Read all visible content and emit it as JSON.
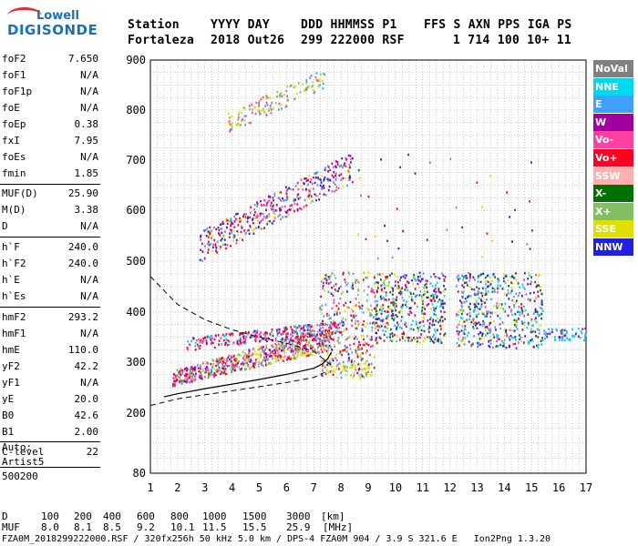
{
  "logo": {
    "line1": "Lowell",
    "line2": "DIGISONDE"
  },
  "header": {
    "labels": [
      "Station",
      "YYYY DAY",
      "DDD HHMMSS P1",
      "FFS S AXN PPS IGA PS"
    ],
    "values": [
      "Fortaleza",
      "2018 Out26",
      "299 222000 RSF",
      "1 714 100 10+ 11"
    ]
  },
  "params": [
    {
      "label": "foF2",
      "value": "7.650"
    },
    {
      "label": "foF1",
      "value": "N/A"
    },
    {
      "label": "foF1p",
      "value": "N/A"
    },
    {
      "label": "foE",
      "value": "N/A"
    },
    {
      "label": "foEp",
      "value": "0.38"
    },
    {
      "label": "fxI",
      "value": "7.95"
    },
    {
      "label": "foEs",
      "value": "N/A"
    },
    {
      "label": "fmin",
      "value": "1.85"
    },
    {
      "label": "MUF(D)",
      "value": "25.90"
    },
    {
      "label": "M(D)",
      "value": "3.38"
    },
    {
      "label": "D",
      "value": "N/A"
    },
    {
      "label": "h`F",
      "value": "240.0"
    },
    {
      "label": "h`F2",
      "value": "240.0"
    },
    {
      "label": "h`E",
      "value": "N/A"
    },
    {
      "label": "h`Es",
      "value": "N/A"
    },
    {
      "label": "hmF2",
      "value": "293.2"
    },
    {
      "label": "hmF1",
      "value": "N/A"
    },
    {
      "label": "hmE",
      "value": "110.0"
    },
    {
      "label": "yF2",
      "value": "42.2"
    },
    {
      "label": "yF1",
      "value": "N/A"
    },
    {
      "label": "yE",
      "value": "20.0"
    },
    {
      "label": "B0",
      "value": "42.6"
    },
    {
      "label": "B1",
      "value": "2.00"
    },
    {
      "label": "C-level",
      "value": "22"
    }
  ],
  "extra": [
    "Auto:",
    "Artist5",
    "500200"
  ],
  "muf_table": {
    "d_label": "D",
    "d_values": [
      "100",
      "200",
      "400",
      "600",
      "800",
      "1000",
      "1500",
      "3000"
    ],
    "d_unit": "[km]",
    "muf_label": "MUF",
    "muf_values": [
      "8.0",
      "8.1",
      "8.5",
      "9.2",
      "10.1",
      "11.5",
      "15.5",
      "25.9"
    ],
    "muf_unit": "[MHz]"
  },
  "footer": "FZA0M_2018299222000.RSF / 320fx256h 50 kHz 5.0 km / DPS-4 FZA0M 904 / 3.9 S 321.6 E   Ion2Png 1.3.20",
  "legend": [
    {
      "label": "NoVal",
      "color": "#808080"
    },
    {
      "label": "NNE",
      "color": "#00d8f0"
    },
    {
      "label": "E",
      "color": "#40a0ff"
    },
    {
      "label": "W",
      "color": "#a000a0"
    },
    {
      "label": "Vo-",
      "color": "#ff40a0"
    },
    {
      "label": "Vo+",
      "color": "#ff0020"
    },
    {
      "label": "SSW",
      "color": "#ffb0b0"
    },
    {
      "label": "X-",
      "color": "#007000"
    },
    {
      "label": "X+",
      "color": "#80c060"
    },
    {
      "label": "SSE",
      "color": "#e0e000"
    },
    {
      "label": "NNW",
      "color": "#2020e0"
    }
  ],
  "chart_data": {
    "type": "scatter",
    "xlim": [
      1,
      17
    ],
    "ylim": [
      80,
      900
    ],
    "x_ticks": [
      1,
      2,
      3,
      4,
      5,
      6,
      7,
      8,
      9,
      10,
      11,
      12,
      13,
      14,
      15,
      16,
      17
    ],
    "y_ticks": [
      80,
      200,
      300,
      400,
      500,
      600,
      700,
      800,
      900
    ],
    "x_tick_labels": [
      "1",
      "2",
      "3",
      "4",
      "5",
      "6",
      "7",
      "8",
      "9",
      "10",
      "11",
      "12",
      "13",
      "14",
      "15",
      "16",
      "17"
    ],
    "y_tick_labels": [
      "80",
      "200",
      "300",
      "400",
      "500",
      "600",
      "700",
      "800",
      "900"
    ],
    "grid": true,
    "clusters": [
      {
        "name": "F-trace",
        "x": [
          1.8,
          7.6
        ],
        "y": [
          250,
          340
        ],
        "colors": [
          "#ff0020",
          "#ff40a0",
          "#a000a0",
          "#e0e000",
          "#80c060",
          "#40a0ff"
        ],
        "count": 700
      },
      {
        "name": "F-upper",
        "x": [
          2.3,
          8.0
        ],
        "y": [
          320,
          400
        ],
        "colors": [
          "#a000a0",
          "#ff40a0",
          "#ff0020",
          "#00d8f0"
        ],
        "count": 300
      },
      {
        "name": "F-spread",
        "x": [
          7.2,
          9.2
        ],
        "y": [
          270,
          480
        ],
        "colors": [
          "#ff0020",
          "#e0e000",
          "#2020e0",
          "#80c060",
          "#ff40a0",
          "#40a0ff"
        ],
        "count": 350
      },
      {
        "name": "spread-mid",
        "x": [
          9.2,
          11.8
        ],
        "y": [
          340,
          480
        ],
        "colors": [
          "#2020e0",
          "#00d8f0",
          "#40a0ff",
          "#e0e000",
          "#ff0020",
          "#a000a0",
          "#007000"
        ],
        "count": 450
      },
      {
        "name": "spread-right",
        "x": [
          12.2,
          15.4
        ],
        "y": [
          330,
          480
        ],
        "colors": [
          "#2020e0",
          "#00d8f0",
          "#40a0ff",
          "#ff40a0",
          "#a000a0",
          "#e0e000",
          "#007000"
        ],
        "count": 500
      },
      {
        "name": "tail-right",
        "x": [
          15.4,
          17
        ],
        "y": [
          345,
          370
        ],
        "colors": [
          "#a000a0",
          "#40a0ff",
          "#00d8f0"
        ],
        "count": 60
      },
      {
        "name": "multihop-2",
        "x": [
          2.8,
          8.4
        ],
        "y": [
          490,
          690
        ],
        "colors": [
          "#e0e000",
          "#40a0ff",
          "#ff40a0",
          "#a000a0",
          "#2020e0",
          "#ff0020"
        ],
        "count": 420
      },
      {
        "name": "multihop-3",
        "x": [
          3.8,
          7.4
        ],
        "y": [
          750,
          870
        ],
        "colors": [
          "#e0e000",
          "#40a0ff",
          "#ff40a0",
          "#80c060"
        ],
        "count": 140
      },
      {
        "name": "scatter-upper",
        "x": [
          8.5,
          15.0
        ],
        "y": [
          500,
          720
        ],
        "colors": [
          "#2020e0",
          "#40a0ff",
          "#ff0020",
          "#e0e000",
          "#007000"
        ],
        "count": 40
      },
      {
        "name": "low-points",
        "x": [
          7.5,
          9.2
        ],
        "y": [
          275,
          300
        ],
        "colors": [
          "#e0e000"
        ],
        "count": 40
      }
    ],
    "ionogram_curve": [
      [
        1.5,
        232
      ],
      [
        2,
        238
      ],
      [
        3,
        248
      ],
      [
        4,
        257
      ],
      [
        5,
        266
      ],
      [
        6,
        276
      ],
      [
        7,
        288
      ],
      [
        7.3,
        296
      ],
      [
        7.5,
        306
      ],
      [
        7.65,
        320
      ]
    ],
    "profile_curve": [
      [
        1,
        470
      ],
      [
        2,
        415
      ],
      [
        3,
        385
      ],
      [
        4,
        365
      ],
      [
        5,
        350
      ],
      [
        6,
        338
      ],
      [
        7,
        322
      ],
      [
        7.5,
        300
      ],
      [
        7.65,
        293
      ]
    ],
    "lower_dashed": [
      [
        1,
        215
      ],
      [
        2,
        228
      ],
      [
        3,
        236
      ],
      [
        4,
        244
      ],
      [
        5,
        252
      ],
      [
        6,
        260
      ],
      [
        7,
        270
      ],
      [
        7.4,
        280
      ]
    ]
  }
}
